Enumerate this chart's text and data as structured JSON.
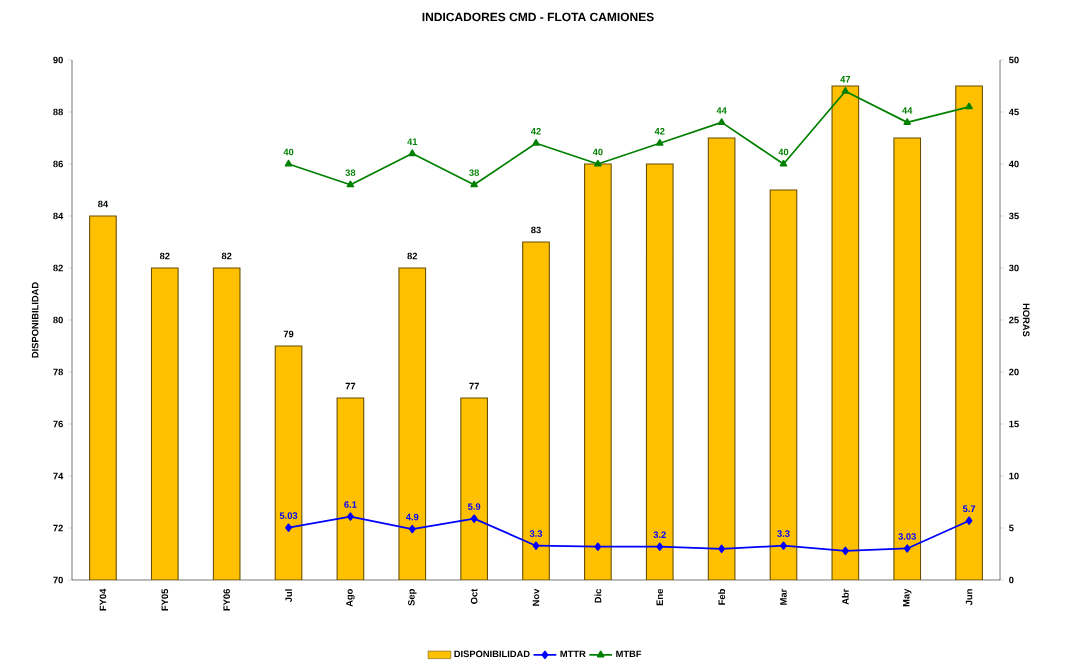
{
  "chart_data": {
    "type": "bar",
    "title": "INDICADORES CMD - FLOTA CAMIONES",
    "ylabel": "DISPONIBILIDAD",
    "y2label": "HORAS",
    "categories": [
      "FY04",
      "FY05",
      "FY06",
      "Jul",
      "Ago",
      "Sep",
      "Oct",
      "Nov",
      "Dic",
      "Ene",
      "Feb",
      "Mar",
      "Abr",
      "May",
      "Jun"
    ],
    "series": [
      {
        "name": "DISPONIBILIDAD",
        "color": "#ffc000",
        "values": [
          84,
          82,
          82,
          79,
          77,
          82,
          77,
          83,
          86,
          86,
          87,
          85,
          89,
          87,
          89
        ],
        "value_labels": [
          "84",
          "82",
          "82",
          "79",
          "77",
          "82",
          "77",
          "83",
          null,
          null,
          null,
          null,
          null,
          null,
          null
        ]
      },
      {
        "name": "MTTR",
        "type": "line",
        "axis": "y2",
        "marker": "diamond",
        "color": "#0000ff",
        "values": [
          null,
          null,
          null,
          5.03,
          6.1,
          4.9,
          5.9,
          3.3,
          3.2,
          3.2,
          3.0,
          3.3,
          2.8,
          3.03,
          5.7
        ],
        "value_labels": [
          null,
          null,
          null,
          "5.03",
          "6.1",
          "4.9",
          "5.9",
          "3.3",
          null,
          "3.2",
          null,
          "3.3",
          null,
          "3.03",
          "5.7"
        ]
      },
      {
        "name": "MTBF",
        "type": "line",
        "axis": "y2",
        "marker": "triangle",
        "color": "#008000",
        "values": [
          null,
          null,
          null,
          40,
          38,
          41,
          38,
          42,
          40,
          42,
          44,
          40,
          47,
          44,
          45.5
        ],
        "value_labels": [
          null,
          null,
          null,
          "40",
          "38",
          "41",
          "38",
          "42",
          "40",
          "42",
          "44",
          "40",
          "47",
          "44",
          null
        ]
      }
    ],
    "ylim": [
      70,
      90
    ],
    "yticks": [
      70,
      72,
      74,
      76,
      78,
      80,
      82,
      84,
      86,
      88,
      90
    ],
    "y2lim": [
      0,
      50
    ],
    "y2ticks": [
      0,
      5,
      10,
      15,
      20,
      25,
      30,
      35,
      40,
      45,
      50
    ],
    "legend": "bottom"
  }
}
